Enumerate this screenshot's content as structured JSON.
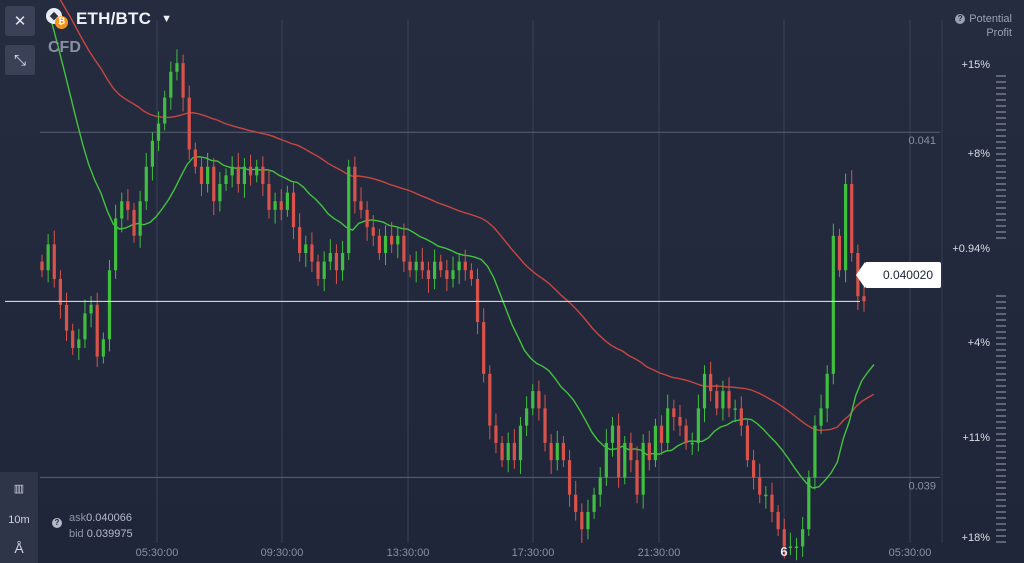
{
  "header": {
    "pair": "ETH/BTC",
    "instrument_type": "CFD",
    "profit_label_1": "Potential",
    "profit_label_2": "Profit"
  },
  "toolbar": {
    "close_icon": "close-icon",
    "collapse_icon": "collapse-arrows-icon",
    "timeframe": "10m"
  },
  "quotes": {
    "ask_label": "ask",
    "ask_value": "0.040066",
    "bid_label": "bid",
    "bid_value": "0.039975",
    "current_price": "0.040020"
  },
  "colors": {
    "up": "#3fbf3f",
    "down": "#d9534a",
    "ma_fast": "#43c23e",
    "ma_slow": "#c9463f",
    "background": "#242a3d"
  },
  "chart_data": {
    "type": "candlestick",
    "x_tick_labels": [
      "05:30:00",
      "09:30:00",
      "13:30:00",
      "17:30:00",
      "21:30:00",
      "6",
      "05:30:00"
    ],
    "level_lines": [
      0.041,
      0.039
    ],
    "level_labels": [
      "0.041",
      "0.039"
    ],
    "current_price": 0.04002,
    "right_scale_labels": [
      "+15%",
      "+8%",
      "+0.94%",
      "+4%",
      "+11%",
      "+18%"
    ],
    "ylim": [
      0.03862,
      0.04165
    ],
    "candles_close": [
      0.0402,
      0.04035,
      0.04015,
      0.04,
      0.03985,
      0.03975,
      0.0398,
      0.03995,
      0.04,
      0.0397,
      0.0398,
      0.0402,
      0.0405,
      0.0406,
      0.04055,
      0.0404,
      0.0406,
      0.0408,
      0.04095,
      0.04105,
      0.0412,
      0.04135,
      0.0414,
      0.0412,
      0.0409,
      0.0408,
      0.0407,
      0.0408,
      0.0406,
      0.0407,
      0.04075,
      0.0408,
      0.0407,
      0.0408,
      0.04075,
      0.0408,
      0.0407,
      0.04055,
      0.0406,
      0.04055,
      0.04065,
      0.04045,
      0.0403,
      0.04035,
      0.04025,
      0.04015,
      0.04025,
      0.0403,
      0.0402,
      0.0403,
      0.0408,
      0.0406,
      0.04055,
      0.04045,
      0.0404,
      0.0403,
      0.0404,
      0.04035,
      0.0404,
      0.04025,
      0.0402,
      0.04025,
      0.0402,
      0.04015,
      0.04025,
      0.0402,
      0.04015,
      0.0402,
      0.04025,
      0.0402,
      0.04015,
      0.0399,
      0.0396,
      0.0393,
      0.0392,
      0.0391,
      0.0392,
      0.0391,
      0.0393,
      0.0394,
      0.0395,
      0.0394,
      0.0392,
      0.0391,
      0.0392,
      0.0391,
      0.0389,
      0.0388,
      0.0387,
      0.0388,
      0.0389,
      0.039,
      0.0392,
      0.0393,
      0.039,
      0.0392,
      0.0391,
      0.0389,
      0.0392,
      0.0391,
      0.0393,
      0.0392,
      0.0394,
      0.03935,
      0.0393,
      0.0392,
      0.0392,
      0.0394,
      0.0396,
      0.0395,
      0.0394,
      0.0395,
      0.0394,
      0.0394,
      0.0393,
      0.0391,
      0.039,
      0.0389,
      0.0389,
      0.0388,
      0.0387,
      0.0386,
      0.0386,
      0.0386,
      0.0387,
      0.039,
      0.0393,
      0.0394,
      0.0396,
      0.0404,
      0.0402,
      0.0407,
      0.0403,
      0.04005,
      0.04002
    ]
  }
}
